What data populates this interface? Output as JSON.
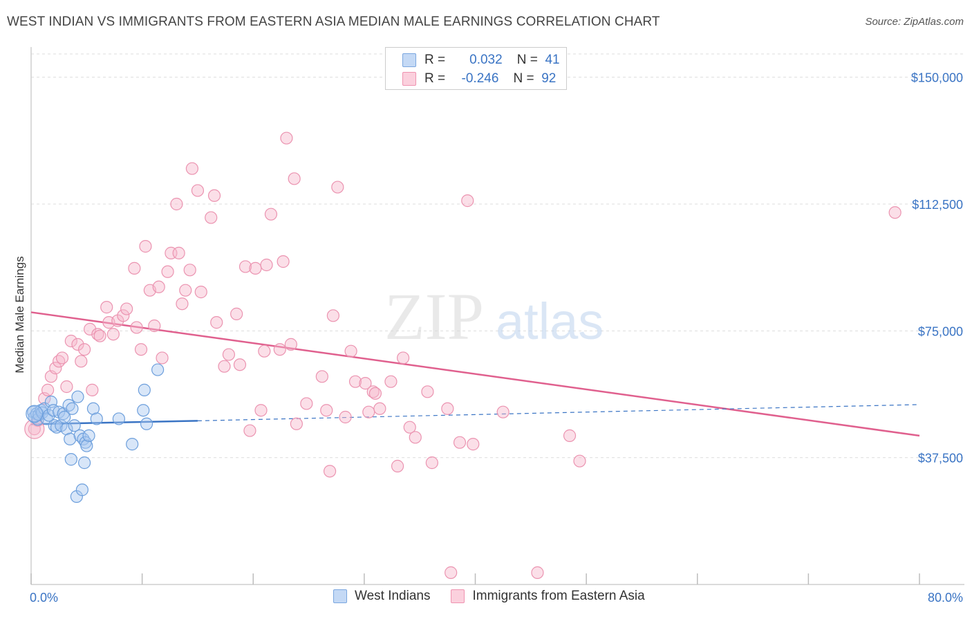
{
  "title": "WEST INDIAN VS IMMIGRANTS FROM EASTERN ASIA MEDIAN MALE EARNINGS CORRELATION CHART",
  "source": "Source: ZipAtlas.com",
  "watermark": {
    "part1": "ZIP",
    "part2": "atlas"
  },
  "legend": {
    "rows": [
      {
        "r_label": "R =",
        "r_value": "0.032",
        "n_label": "N =",
        "n_value": "41",
        "color": "#a9c8f0"
      },
      {
        "r_label": "R =",
        "r_value": "-0.246",
        "n_label": "N =",
        "n_value": "92",
        "color": "#f7b8cb"
      }
    ]
  },
  "bottom_legend": {
    "items": [
      {
        "label": "West Indians",
        "color": "#a9c8f0"
      },
      {
        "label": "Immigrants from Eastern Asia",
        "color": "#f7b8cb"
      }
    ]
  },
  "colors": {
    "blue": "#3a74c4",
    "blue_fill": "#a9c8f0",
    "pink": "#e0608e",
    "pink_fill": "#f7b8cb",
    "grid": "#dddddd"
  },
  "chart_data": {
    "type": "scatter",
    "xlabel": "",
    "ylabel": "Median Male Earnings",
    "xlim": [
      0,
      80
    ],
    "ylim": [
      0,
      157500
    ],
    "x_tick_labels": [
      "0.0%",
      "80.0%"
    ],
    "y_ticks": [
      37500,
      75000,
      112500,
      150000
    ],
    "y_tick_labels": [
      "$37,500",
      "$75,000",
      "$112,500",
      "$150,000"
    ],
    "series": [
      {
        "name": "West Indians",
        "points": [
          [
            0.2,
            51000
          ],
          [
            0.3,
            49500
          ],
          [
            0.5,
            50500
          ],
          [
            0.6,
            48800
          ],
          [
            0.7,
            50200
          ],
          [
            0.9,
            51500
          ],
          [
            1.0,
            50800
          ],
          [
            1.2,
            52000
          ],
          [
            1.4,
            49000
          ],
          [
            1.6,
            50000
          ],
          [
            1.8,
            54000
          ],
          [
            2.0,
            51500
          ],
          [
            2.1,
            47000
          ],
          [
            2.3,
            46500
          ],
          [
            2.5,
            51000
          ],
          [
            2.7,
            47000
          ],
          [
            2.9,
            50500
          ],
          [
            3.0,
            49500
          ],
          [
            3.2,
            46000
          ],
          [
            3.4,
            53000
          ],
          [
            3.5,
            43000
          ],
          [
            3.6,
            37000
          ],
          [
            3.7,
            52000
          ],
          [
            3.9,
            47000
          ],
          [
            4.1,
            26000
          ],
          [
            4.2,
            55500
          ],
          [
            4.4,
            44000
          ],
          [
            4.6,
            28000
          ],
          [
            4.7,
            43000
          ],
          [
            4.8,
            36000
          ],
          [
            4.9,
            42000
          ],
          [
            5.0,
            41000
          ],
          [
            5.2,
            44000
          ],
          [
            5.6,
            52000
          ],
          [
            5.9,
            49000
          ],
          [
            7.9,
            49000
          ],
          [
            9.1,
            41500
          ],
          [
            10.1,
            51500
          ],
          [
            10.2,
            57500
          ],
          [
            10.4,
            47500
          ],
          [
            11.4,
            63500
          ]
        ],
        "trend": {
          "x": [
            0,
            15
          ],
          "y": [
            47400,
            48400
          ],
          "dashed_to_x": 80,
          "dashed_to_y": 53200
        }
      },
      {
        "name": "Immigrants from Eastern Asia",
        "points": [
          [
            0.3,
            46000
          ],
          [
            0.6,
            48500
          ],
          [
            1.2,
            55000
          ],
          [
            1.5,
            57500
          ],
          [
            1.8,
            61500
          ],
          [
            2.2,
            64000
          ],
          [
            2.5,
            66000
          ],
          [
            2.8,
            67000
          ],
          [
            3.2,
            58500
          ],
          [
            3.6,
            72000
          ],
          [
            4.2,
            71000
          ],
          [
            4.5,
            66000
          ],
          [
            4.8,
            69500
          ],
          [
            5.5,
            57500
          ],
          [
            5.3,
            75500
          ],
          [
            6.0,
            74000
          ],
          [
            6.2,
            73500
          ],
          [
            6.8,
            82000
          ],
          [
            7.0,
            77500
          ],
          [
            7.4,
            74000
          ],
          [
            7.8,
            78000
          ],
          [
            8.3,
            79500
          ],
          [
            8.6,
            81500
          ],
          [
            9.3,
            93500
          ],
          [
            9.5,
            76000
          ],
          [
            9.9,
            69500
          ],
          [
            10.3,
            100000
          ],
          [
            10.7,
            87000
          ],
          [
            11.1,
            76500
          ],
          [
            11.5,
            88000
          ],
          [
            11.8,
            67000
          ],
          [
            12.3,
            92500
          ],
          [
            12.6,
            98000
          ],
          [
            13.1,
            112500
          ],
          [
            13.3,
            98000
          ],
          [
            13.6,
            83000
          ],
          [
            13.9,
            87000
          ],
          [
            14.3,
            93000
          ],
          [
            14.5,
            123000
          ],
          [
            15.0,
            116500
          ],
          [
            15.3,
            86500
          ],
          [
            16.2,
            108500
          ],
          [
            16.5,
            115000
          ],
          [
            16.7,
            77500
          ],
          [
            17.4,
            64500
          ],
          [
            17.8,
            68000
          ],
          [
            18.5,
            80000
          ],
          [
            18.8,
            65000
          ],
          [
            19.3,
            94000
          ],
          [
            19.7,
            45500
          ],
          [
            20.2,
            93500
          ],
          [
            20.7,
            51500
          ],
          [
            21.0,
            69000
          ],
          [
            21.2,
            94500
          ],
          [
            21.6,
            109500
          ],
          [
            22.4,
            69500
          ],
          [
            22.7,
            95500
          ],
          [
            23.0,
            132000
          ],
          [
            23.4,
            71000
          ],
          [
            23.7,
            120000
          ],
          [
            23.9,
            47500
          ],
          [
            24.8,
            53500
          ],
          [
            26.2,
            61500
          ],
          [
            26.6,
            51500
          ],
          [
            26.9,
            33500
          ],
          [
            27.2,
            79500
          ],
          [
            27.6,
            117500
          ],
          [
            28.3,
            49500
          ],
          [
            28.8,
            69000
          ],
          [
            29.2,
            60000
          ],
          [
            30.1,
            59500
          ],
          [
            30.4,
            51000
          ],
          [
            30.8,
            57000
          ],
          [
            31.0,
            56500
          ],
          [
            31.4,
            52000
          ],
          [
            32.4,
            60000
          ],
          [
            33.0,
            35000
          ],
          [
            33.5,
            67000
          ],
          [
            34.1,
            46500
          ],
          [
            34.6,
            43500
          ],
          [
            35.7,
            57000
          ],
          [
            36.1,
            36000
          ],
          [
            37.5,
            52000
          ],
          [
            37.8,
            3500
          ],
          [
            38.6,
            42000
          ],
          [
            39.3,
            113500
          ],
          [
            39.8,
            41500
          ],
          [
            42.5,
            51000
          ],
          [
            45.6,
            3500
          ],
          [
            48.5,
            44000
          ],
          [
            49.4,
            36500
          ],
          [
            77.8,
            110000
          ]
        ],
        "trend": {
          "x": [
            0,
            80
          ],
          "y": [
            80500,
            44000
          ]
        }
      }
    ]
  }
}
